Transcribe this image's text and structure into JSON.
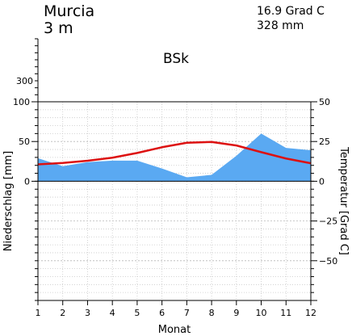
{
  "header": {
    "station": "Murcia",
    "elevation": "3 m",
    "mean_temperature": "16.9 Grad C",
    "annual_precipitation": "328 mm",
    "climate_class": "BSk"
  },
  "chart_data": {
    "type": "area",
    "xlabel": "Monat",
    "ylabel_left": "Niederschlag [mm]",
    "ylabel_right": "Temperatur [Grad C]",
    "x": [
      1,
      2,
      3,
      4,
      5,
      6,
      7,
      8,
      9,
      10,
      11,
      12
    ],
    "ylim_left": [
      -150,
      100
    ],
    "ylim_right": [
      -75,
      50
    ],
    "upper_scale_ticks": [
      300
    ],
    "left_ticks": [
      0,
      50,
      100
    ],
    "right_ticks": [
      -50,
      -25,
      0,
      25,
      50
    ],
    "grid": true,
    "series": [
      {
        "name": "",
        "kind": "area",
        "axis": "left",
        "color": "#5aa9f2",
        "values": [
          29,
          19,
          24,
          26,
          26,
          16,
          5,
          8,
          32,
          60,
          42,
          39
        ]
      },
      {
        "name": "",
        "kind": "line",
        "axis": "right",
        "color": "#dd1111",
        "values": [
          10.6,
          11.5,
          12.9,
          14.8,
          17.8,
          21.4,
          24.2,
          24.7,
          22.5,
          18.3,
          14.3,
          11.3
        ]
      }
    ]
  }
}
